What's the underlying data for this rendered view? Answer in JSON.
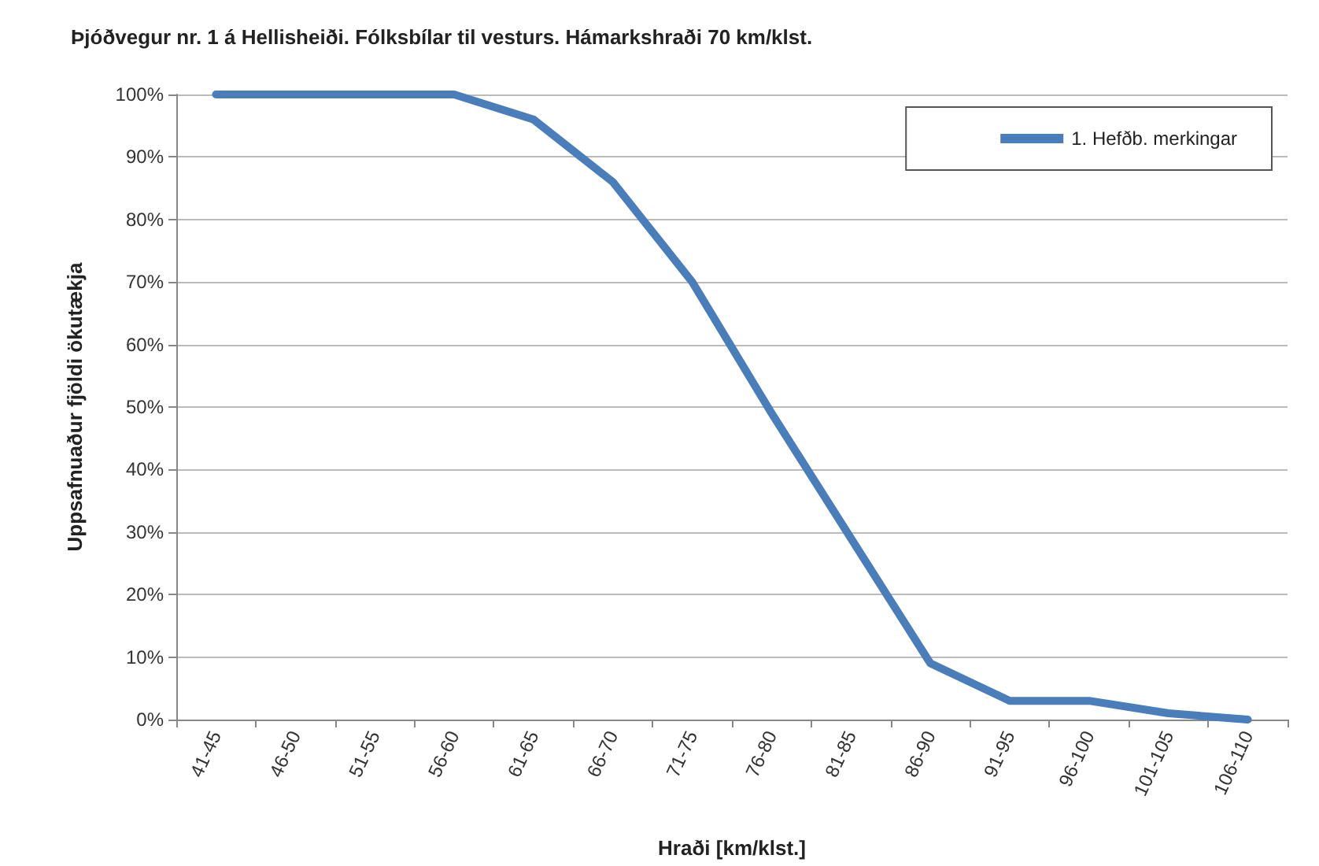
{
  "chart_data": {
    "type": "line",
    "title": "Þjóðvegur nr. 1 á Hellisheiði. Fólksbílar til vesturs. Hámarkshraði 70 km/klst.",
    "xlabel": "Hraði [km/klst.]",
    "ylabel": "Uppsafnuaður fjöldi ökutækja",
    "categories": [
      "41-45",
      "46-50",
      "51-55",
      "56-60",
      "61-65",
      "66-70",
      "71-75",
      "76-80",
      "81-85",
      "86-90",
      "91-95",
      "96-100",
      "101-105",
      "106-110"
    ],
    "series": [
      {
        "name": "1. Hefðb. merkingar",
        "color": "#4a7ebb",
        "values": [
          100,
          100,
          100,
          100,
          96,
          86,
          70,
          49,
          29,
          9,
          3,
          3,
          1,
          0
        ]
      }
    ],
    "ylim": [
      0,
      100
    ],
    "yticks": [
      {
        "value": 0,
        "label": "0%"
      },
      {
        "value": 10,
        "label": "10%"
      },
      {
        "value": 20,
        "label": "20%"
      },
      {
        "value": 30,
        "label": "30%"
      },
      {
        "value": 40,
        "label": "40%"
      },
      {
        "value": 50,
        "label": "50%"
      },
      {
        "value": 60,
        "label": "60%"
      },
      {
        "value": 70,
        "label": "70%"
      },
      {
        "value": 80,
        "label": "80%"
      },
      {
        "value": 90,
        "label": "90%"
      },
      {
        "value": 100,
        "label": "100%"
      }
    ],
    "grid": "y",
    "legend": "top right",
    "marker": "none",
    "line_style": "solid"
  }
}
